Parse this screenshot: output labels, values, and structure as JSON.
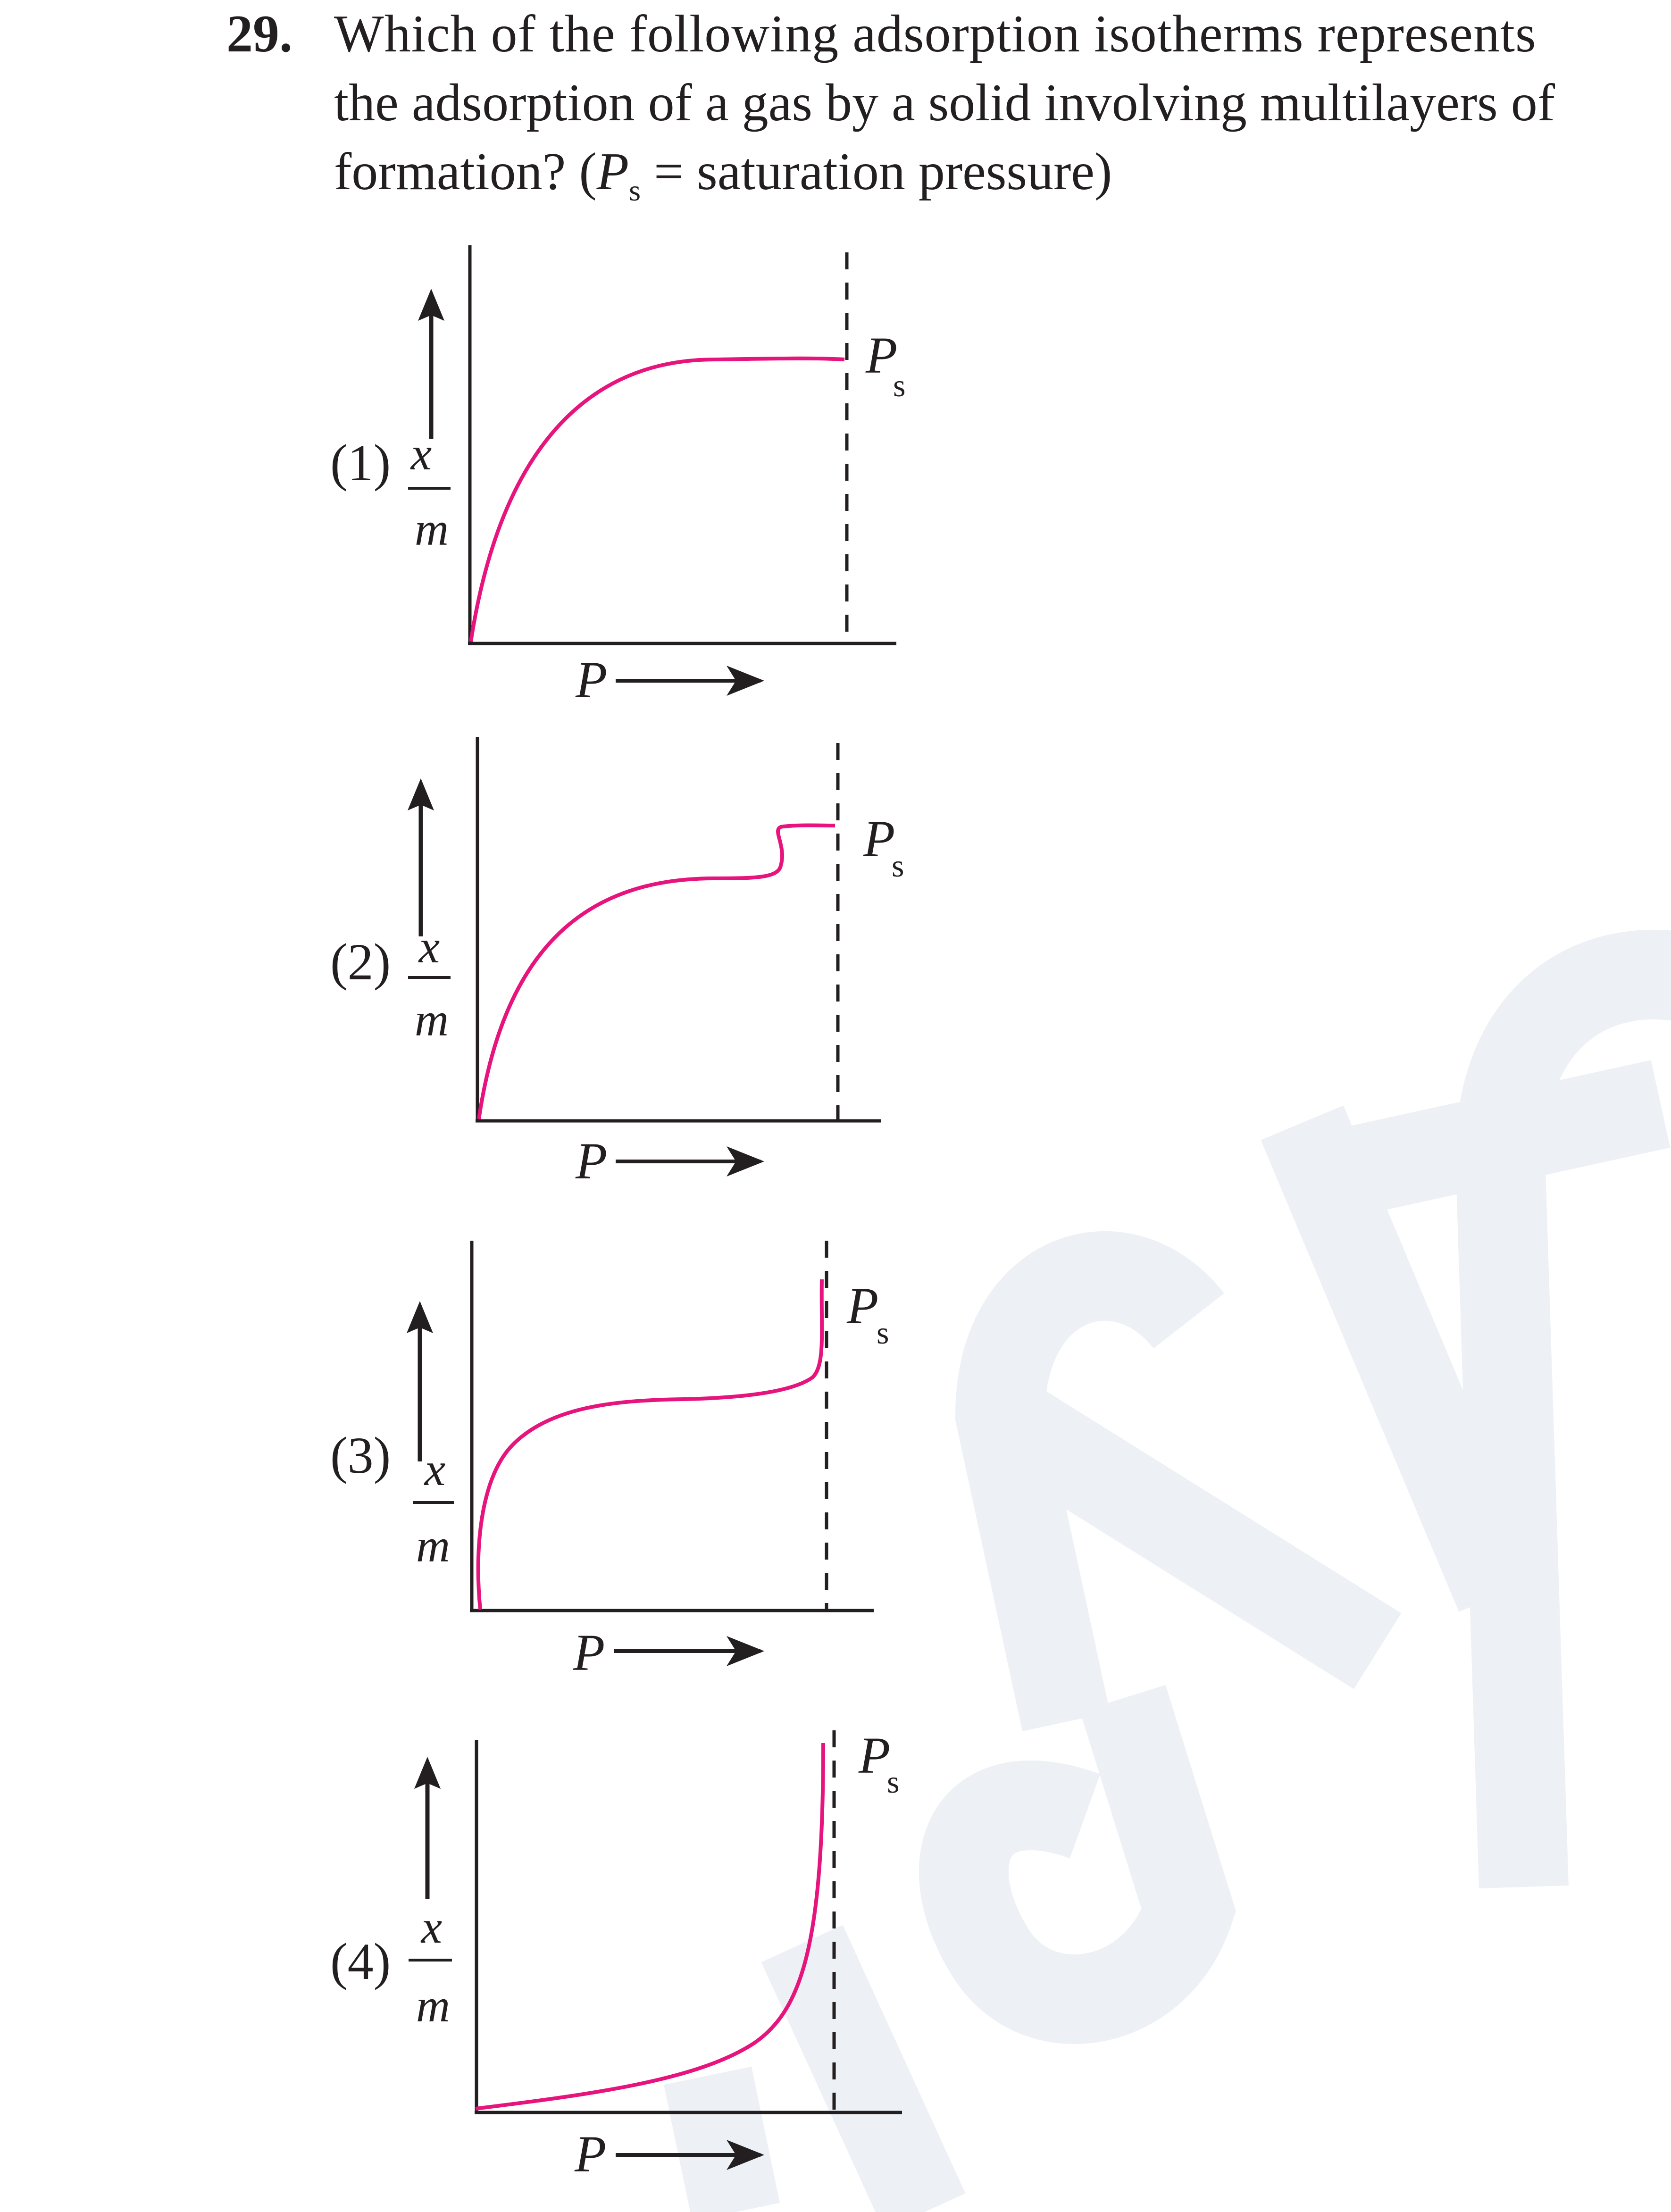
{
  "question": {
    "number": "29.",
    "line1": "Which of the following adsorption isotherms represents",
    "line2": "the adsorption of a gas by a solid involving multilayers  of",
    "line3_prefix": "formation? (",
    "line3_P": "P",
    "line3_sub": "s",
    "line3_suffix": " = saturation pressure)"
  },
  "options": [
    {
      "label": "(1)",
      "y_num": "x",
      "y_den": "m",
      "x_label": "P",
      "ps_label": "P",
      "ps_sub": "s"
    },
    {
      "label": "(2)",
      "y_num": "x",
      "y_den": "m",
      "x_label": "P",
      "ps_label": "P",
      "ps_sub": "s"
    },
    {
      "label": "(3)",
      "y_num": "x",
      "y_den": "m",
      "x_label": "P",
      "ps_label": "P",
      "ps_sub": "s"
    },
    {
      "label": "(4)",
      "y_num": "x",
      "y_den": "m",
      "x_label": "P",
      "ps_label": "P",
      "ps_sub": "s"
    }
  ],
  "colors": {
    "curve": "#e6147c",
    "ink": "#231f20",
    "watermark": "#edf1f5"
  }
}
